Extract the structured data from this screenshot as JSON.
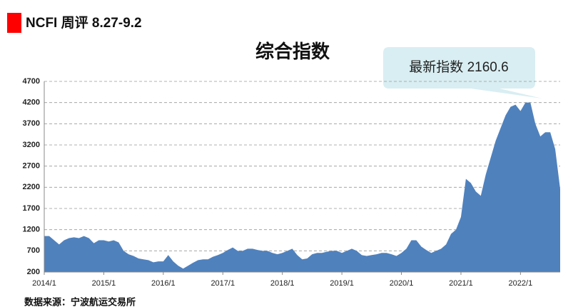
{
  "header": {
    "title": "NCFI 周评 8.27-9.2"
  },
  "chart_data": {
    "type": "area",
    "title": "综合指数",
    "annotation": "最新指数 2160.6",
    "source": "数据来源：宁波航运交易所",
    "color": "#4f81bd",
    "grid": true,
    "ylim": [
      200,
      4700
    ],
    "yticks": [
      200,
      700,
      1200,
      1700,
      2200,
      2700,
      3200,
      3700,
      4200,
      4700
    ],
    "categories": [
      "2014/1",
      null,
      null,
      null,
      null,
      null,
      null,
      null,
      null,
      null,
      null,
      null,
      "2015/1",
      null,
      null,
      null,
      null,
      null,
      null,
      null,
      null,
      null,
      null,
      null,
      "2016/1",
      null,
      null,
      null,
      null,
      null,
      null,
      null,
      null,
      null,
      null,
      null,
      "2017/1",
      null,
      null,
      null,
      null,
      null,
      null,
      null,
      null,
      null,
      null,
      null,
      "2018/1",
      null,
      null,
      null,
      null,
      null,
      null,
      null,
      null,
      null,
      null,
      null,
      "2019/1",
      null,
      null,
      null,
      null,
      null,
      null,
      null,
      null,
      null,
      null,
      null,
      "2020/1",
      null,
      null,
      null,
      null,
      null,
      null,
      null,
      null,
      null,
      null,
      null,
      "2021/1",
      null,
      null,
      null,
      null,
      null,
      null,
      null,
      null,
      null,
      null,
      null,
      "2022/1",
      null,
      null,
      null,
      null,
      null,
      null,
      null,
      null
    ],
    "values": [
      1050,
      1050,
      950,
      850,
      950,
      1000,
      1020,
      1000,
      1050,
      1000,
      880,
      950,
      950,
      920,
      950,
      900,
      700,
      620,
      580,
      520,
      500,
      480,
      430,
      450,
      450,
      600,
      450,
      350,
      280,
      350,
      420,
      480,
      500,
      500,
      560,
      600,
      650,
      720,
      780,
      700,
      700,
      750,
      750,
      720,
      700,
      700,
      650,
      620,
      650,
      700,
      750,
      600,
      500,
      520,
      620,
      650,
      650,
      680,
      700,
      700,
      650,
      700,
      750,
      700,
      600,
      580,
      600,
      620,
      650,
      650,
      620,
      580,
      650,
      750,
      950,
      950,
      800,
      720,
      650,
      700,
      750,
      850,
      1100,
      1200,
      1500,
      2400,
      2300,
      2100,
      2000,
      2500,
      2900,
      3300,
      3600,
      3900,
      4100,
      4150,
      4000,
      4200,
      4200,
      3700,
      3400,
      3500,
      3500,
      3100,
      2160.6
    ]
  }
}
